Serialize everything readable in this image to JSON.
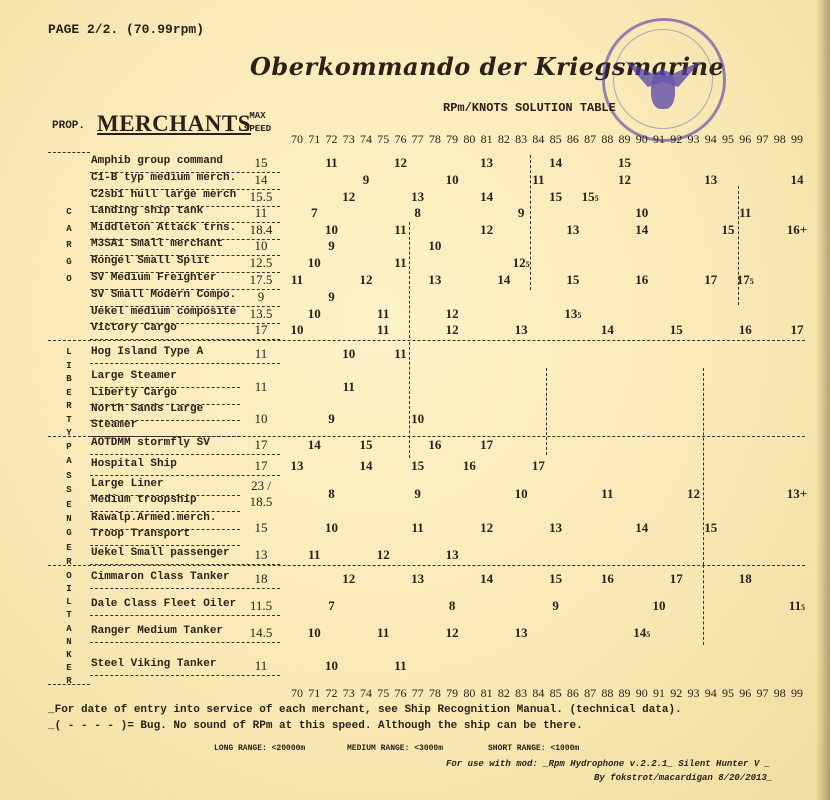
{
  "header": {
    "page_label": "PAGE 2/2. (70.99rpm)",
    "title": "Oberkommando der Kriegsmarine",
    "subtitle": "RPm/KNOTS SOLUTION TABLE",
    "prop_label": "PROP.",
    "category": "MERCHANTS",
    "max_label": "MAX",
    "speed_label": "SPEED"
  },
  "rpm_columns": [
    "70",
    "71",
    "72",
    "73",
    "74",
    "75",
    "76",
    "77",
    "78",
    "79",
    "80",
    "81",
    "82",
    "83",
    "84",
    "85",
    "86",
    "87",
    "88",
    "89",
    "90",
    "91",
    "92",
    "93",
    "94",
    "95",
    "96",
    "97",
    "98",
    "99"
  ],
  "sections": [
    {
      "label": "CARGO",
      "rows": [
        {
          "names": [
            "Amphib group command"
          ],
          "max_speed": "15",
          "knots": [
            {
              "rpm": 72,
              "v": "11"
            },
            {
              "rpm": 76,
              "v": "12"
            },
            {
              "rpm": 81,
              "v": "13"
            },
            {
              "rpm": 85,
              "v": "14"
            },
            {
              "rpm": 89,
              "v": "15"
            }
          ]
        },
        {
          "names": [
            "C1-B typ medium merch."
          ],
          "max_speed": "14",
          "knots": [
            {
              "rpm": 74,
              "v": "9"
            },
            {
              "rpm": 79,
              "v": "10"
            },
            {
              "rpm": 84,
              "v": "11"
            },
            {
              "rpm": 89,
              "v": "12"
            },
            {
              "rpm": 94,
              "v": "13"
            },
            {
              "rpm": 99,
              "v": "14"
            }
          ]
        },
        {
          "names": [
            "C2sb1 hull large merch"
          ],
          "max_speed": "15.5",
          "knots": [
            {
              "rpm": 73,
              "v": "12"
            },
            {
              "rpm": 77,
              "v": "13"
            },
            {
              "rpm": 81,
              "v": "14"
            },
            {
              "rpm": 85,
              "v": "15"
            },
            {
              "rpm": 87,
              "v": "15.5"
            }
          ]
        },
        {
          "names": [
            "Landing ship tank"
          ],
          "max_speed": "11",
          "knots": [
            {
              "rpm": 71,
              "v": "7"
            },
            {
              "rpm": 77,
              "v": "8"
            },
            {
              "rpm": 83,
              "v": "9"
            },
            {
              "rpm": 90,
              "v": "10"
            },
            {
              "rpm": 96,
              "v": "11"
            }
          ]
        },
        {
          "names": [
            "Middleton Attack trns."
          ],
          "max_speed": "18.4",
          "knots": [
            {
              "rpm": 72,
              "v": "10"
            },
            {
              "rpm": 76,
              "v": "11"
            },
            {
              "rpm": 81,
              "v": "12"
            },
            {
              "rpm": 86,
              "v": "13"
            },
            {
              "rpm": 90,
              "v": "14"
            },
            {
              "rpm": 95,
              "v": "15"
            },
            {
              "rpm": 99,
              "v": "16+"
            }
          ]
        },
        {
          "names": [
            "M3SA1 Small merchant"
          ],
          "max_speed": "10",
          "knots": [
            {
              "rpm": 72,
              "v": "9"
            },
            {
              "rpm": 78,
              "v": "10"
            }
          ]
        },
        {
          "names": [
            "Rongel Small Split"
          ],
          "max_speed": "12.5",
          "knots": [
            {
              "rpm": 71,
              "v": "10"
            },
            {
              "rpm": 76,
              "v": "11"
            },
            {
              "rpm": 83,
              "v": "12.5"
            }
          ]
        },
        {
          "names": [
            "SV Medium Freighter"
          ],
          "max_speed": "17.5",
          "knots": [
            {
              "rpm": 70,
              "v": "11"
            },
            {
              "rpm": 74,
              "v": "12"
            },
            {
              "rpm": 78,
              "v": "13"
            },
            {
              "rpm": 82,
              "v": "14"
            },
            {
              "rpm": 86,
              "v": "15"
            },
            {
              "rpm": 90,
              "v": "16"
            },
            {
              "rpm": 94,
              "v": "17"
            },
            {
              "rpm": 96,
              "v": "17.5"
            }
          ]
        },
        {
          "names": [
            "SV Small Modern Compo."
          ],
          "max_speed": "9",
          "knots": [
            {
              "rpm": 72,
              "v": "9"
            }
          ]
        },
        {
          "names": [
            "Uekel medium composite"
          ],
          "max_speed": "13.5",
          "knots": [
            {
              "rpm": 71,
              "v": "10"
            },
            {
              "rpm": 75,
              "v": "11"
            },
            {
              "rpm": 79,
              "v": "12"
            },
            {
              "rpm": 86,
              "v": "13.5"
            }
          ]
        },
        {
          "names": [
            "Victory Cargo"
          ],
          "max_speed": "17",
          "knots": [
            {
              "rpm": 70,
              "v": "10"
            },
            {
              "rpm": 75,
              "v": "11"
            },
            {
              "rpm": 79,
              "v": "12"
            },
            {
              "rpm": 83,
              "v": "13"
            },
            {
              "rpm": 88,
              "v": "14"
            },
            {
              "rpm": 92,
              "v": "15"
            },
            {
              "rpm": 96,
              "v": "16"
            },
            {
              "rpm": 99,
              "v": "17"
            }
          ]
        }
      ]
    },
    {
      "label": "LIBERTY",
      "rows": [
        {
          "names": [
            "Hog Island Type A"
          ],
          "max_speed": "11",
          "knots": [
            {
              "rpm": 73,
              "v": "10"
            },
            {
              "rpm": 76,
              "v": "11"
            }
          ]
        },
        {
          "names": [
            "Large Steamer",
            "Liberty Cargo"
          ],
          "max_speed": "11",
          "knots": [
            {
              "rpm": 73,
              "v": "11"
            }
          ]
        },
        {
          "names": [
            "North Sands Large",
            "Steamer"
          ],
          "max_speed": "10",
          "knots": [
            {
              "rpm": 72,
              "v": "9"
            },
            {
              "rpm": 77,
              "v": "10"
            }
          ]
        }
      ]
    },
    {
      "label": "PASSENGER",
      "rows": [
        {
          "names": [
            "AOTDMM stormfly SV"
          ],
          "max_speed": "17",
          "knots": [
            {
              "rpm": 71,
              "v": "14"
            },
            {
              "rpm": 74,
              "v": "15"
            },
            {
              "rpm": 78,
              "v": "16"
            },
            {
              "rpm": 81,
              "v": "17"
            }
          ]
        },
        {
          "names": [
            "Hospital Ship"
          ],
          "max_speed": "17",
          "knots": [
            {
              "rpm": 70,
              "v": "13"
            },
            {
              "rpm": 74,
              "v": "14"
            },
            {
              "rpm": 77,
              "v": "15"
            },
            {
              "rpm": 80,
              "v": "16"
            },
            {
              "rpm": 84,
              "v": "17"
            }
          ]
        },
        {
          "names": [
            "Large Liner",
            "Medium troopship"
          ],
          "max_speed": "23 / 18.5",
          "knots": [
            {
              "rpm": 72,
              "v": "8"
            },
            {
              "rpm": 77,
              "v": "9"
            },
            {
              "rpm": 83,
              "v": "10"
            },
            {
              "rpm": 88,
              "v": "11"
            },
            {
              "rpm": 93,
              "v": "12"
            },
            {
              "rpm": 99,
              "v": "13+"
            }
          ]
        },
        {
          "names": [
            "Rawalp.Armed.merch.",
            "Troop Transport"
          ],
          "max_speed": "15",
          "knots": [
            {
              "rpm": 72,
              "v": "10"
            },
            {
              "rpm": 77,
              "v": "11"
            },
            {
              "rpm": 81,
              "v": "12"
            },
            {
              "rpm": 85,
              "v": "13"
            },
            {
              "rpm": 90,
              "v": "14"
            },
            {
              "rpm": 94,
              "v": "15"
            }
          ]
        },
        {
          "names": [
            "Uekel Small passenger"
          ],
          "max_speed": "13",
          "knots": [
            {
              "rpm": 71,
              "v": "11"
            },
            {
              "rpm": 75,
              "v": "12"
            },
            {
              "rpm": 79,
              "v": "13"
            }
          ]
        }
      ]
    },
    {
      "label": "OILTANKER",
      "rows": [
        {
          "names": [
            "Cimmaron Class Tanker"
          ],
          "max_speed": "18",
          "knots": [
            {
              "rpm": 73,
              "v": "12"
            },
            {
              "rpm": 77,
              "v": "13"
            },
            {
              "rpm": 81,
              "v": "14"
            },
            {
              "rpm": 85,
              "v": "15"
            },
            {
              "rpm": 88,
              "v": "16"
            },
            {
              "rpm": 92,
              "v": "17"
            },
            {
              "rpm": 96,
              "v": "18"
            }
          ]
        },
        {
          "names": [
            "Dale Class Fleet Oiler"
          ],
          "max_speed": "11.5",
          "knots": [
            {
              "rpm": 72,
              "v": "7"
            },
            {
              "rpm": 79,
              "v": "8"
            },
            {
              "rpm": 85,
              "v": "9"
            },
            {
              "rpm": 91,
              "v": "10"
            },
            {
              "rpm": 99,
              "v": "11.5"
            }
          ]
        },
        {
          "names": [
            "Ranger Medium Tanker"
          ],
          "max_speed": "14.5",
          "knots": [
            {
              "rpm": 71,
              "v": "10"
            },
            {
              "rpm": 75,
              "v": "11"
            },
            {
              "rpm": 79,
              "v": "12"
            },
            {
              "rpm": 83,
              "v": "13"
            },
            {
              "rpm": 90,
              "v": "14.5"
            }
          ]
        },
        {
          "names": [
            "Steel Viking Tanker"
          ],
          "max_speed": "11",
          "knots": [
            {
              "rpm": 72,
              "v": "10"
            },
            {
              "rpm": 76,
              "v": "11"
            }
          ]
        }
      ]
    }
  ],
  "notes": {
    "line1": "_For date of entry into service of each merchant, see Ship Recognition Manual. (technical data).",
    "line2": "_( - - - - )= Bug. No sound of RPm at this speed. Although the ship can be there.",
    "long_range": "LONG RANGE: <20000m",
    "medium_range": "MEDIUM RANGE: <3000m",
    "short_range": "SHORT RANGE: <1000m",
    "credit1": "For use with mod: _Rpm Hydrophone v.2.2.1_ Silent Hunter V _",
    "credit2": "By fokstrot/macardigan 8/20/2013_"
  },
  "colors": {
    "paper": "#f9e9b6",
    "ink": "#2a2218",
    "stamp": "#5a46aa"
  }
}
